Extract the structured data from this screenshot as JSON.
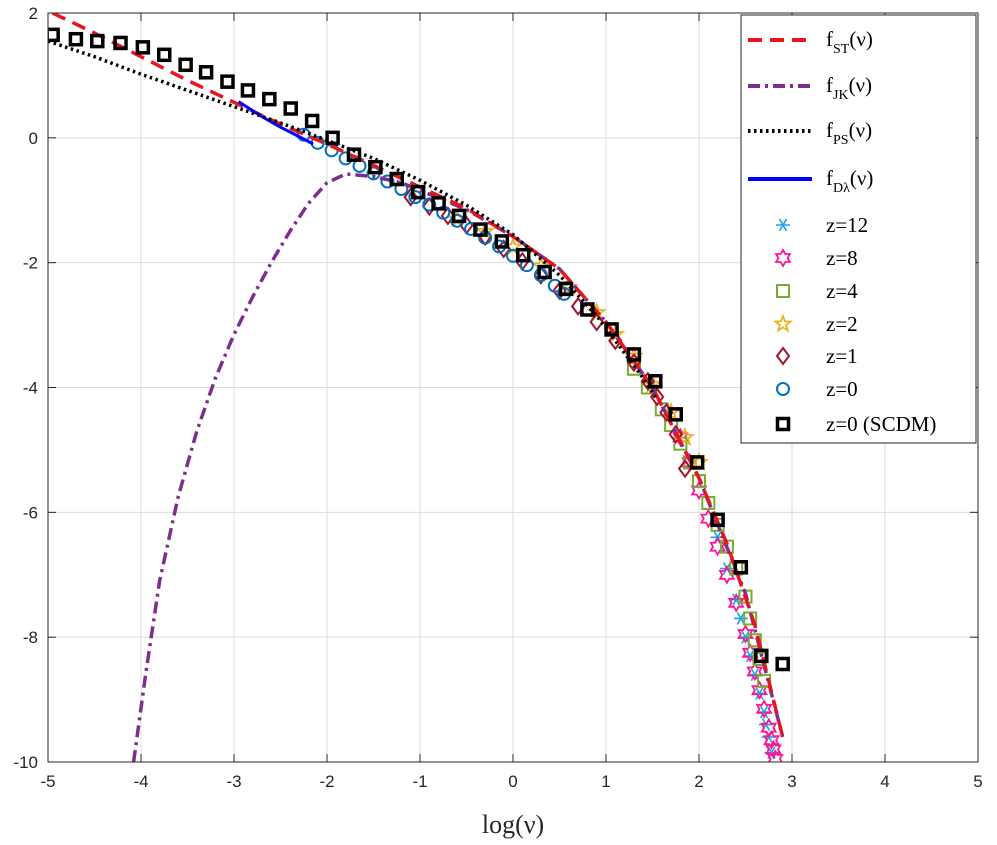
{
  "chart_data": {
    "type": "line",
    "title": "",
    "xlabel": "log(ν)",
    "ylabel": "",
    "xlim": [
      -5,
      5
    ],
    "ylim": [
      -10,
      2
    ],
    "xticks": [
      -5,
      -4,
      -3,
      -2,
      -1,
      0,
      1,
      2,
      3,
      4,
      5
    ],
    "yticks": [
      2,
      0,
      -2,
      -4,
      -6,
      -8,
      -10
    ],
    "grid": true,
    "legend_position": "top-right",
    "series": [
      {
        "name": "f_ST(ν)",
        "label_main": "f",
        "label_sub": "ST",
        "label_tail": "(ν)",
        "kind": "line",
        "style": "dashed",
        "color": "#e8141e",
        "x": [
          -4.95,
          -4.5,
          -4.0,
          -3.5,
          -3.0,
          -2.5,
          -2.0,
          -1.5,
          -1.0,
          -0.5,
          0.0,
          0.5,
          1.0,
          1.5,
          2.0,
          2.3,
          2.6,
          2.9
        ],
        "y": [
          2.0,
          1.68,
          1.3,
          0.92,
          0.57,
          0.22,
          -0.1,
          -0.44,
          -0.79,
          -1.13,
          -1.58,
          -2.1,
          -2.95,
          -4.0,
          -5.45,
          -6.5,
          -7.8,
          -9.6
        ]
      },
      {
        "name": "f_JK(ν)",
        "label_main": "f",
        "label_sub": "JK",
        "label_tail": "(ν)",
        "kind": "line",
        "style": "dashdot",
        "color": "#7e2f8e",
        "x": [
          -4.08,
          -3.95,
          -3.8,
          -3.6,
          -3.4,
          -3.2,
          -3.0,
          -2.8,
          -2.6,
          -2.4,
          -2.2,
          -2.0,
          -1.8,
          -1.5,
          -1.2,
          -1.0,
          -0.5,
          0.0,
          0.5,
          1.0,
          1.5,
          2.0,
          2.5,
          2.9
        ],
        "y": [
          -10.0,
          -8.6,
          -7.1,
          -5.75,
          -4.7,
          -3.85,
          -3.15,
          -2.55,
          -2.0,
          -1.5,
          -1.05,
          -0.72,
          -0.58,
          -0.62,
          -0.72,
          -0.84,
          -1.15,
          -1.58,
          -2.1,
          -2.95,
          -4.0,
          -5.45,
          -7.3,
          -9.6
        ]
      },
      {
        "name": "f_PS(ν)",
        "label_main": "f",
        "label_sub": "PS",
        "label_tail": "(ν)",
        "kind": "line",
        "style": "dotted",
        "color": "#000000",
        "x": [
          -5.0,
          -4.5,
          -4.0,
          -3.5,
          -3.0,
          -2.5,
          -2.0,
          -1.5,
          -1.0,
          -0.5,
          0.0,
          0.5,
          0.9,
          1.2,
          1.4,
          1.55
        ],
        "y": [
          1.55,
          1.3,
          1.02,
          0.76,
          0.5,
          0.24,
          -0.04,
          -0.33,
          -0.68,
          -1.08,
          -1.55,
          -2.2,
          -2.85,
          -3.45,
          -3.85,
          -4.2
        ]
      },
      {
        "name": "f_Dλ(ν)",
        "label_main": "f",
        "label_sub": "Dλ",
        "label_tail": "(ν)",
        "kind": "line",
        "style": "solid",
        "color": "#0000ff",
        "x": [
          -2.95,
          -2.7,
          -2.5,
          -2.3,
          -2.15
        ],
        "y": [
          0.58,
          0.34,
          0.17,
          0.02,
          -0.1
        ]
      },
      {
        "name": "z=12",
        "kind": "scatter",
        "marker": "asterisk",
        "color": "#1aa3e8",
        "x": [
          2.2,
          2.3,
          2.4,
          2.45,
          2.5,
          2.55,
          2.6,
          2.65,
          2.7,
          2.72,
          2.75,
          2.78
        ],
        "y": [
          -6.4,
          -6.9,
          -7.4,
          -7.7,
          -8.0,
          -8.3,
          -8.6,
          -8.9,
          -9.2,
          -9.4,
          -9.6,
          -9.85
        ]
      },
      {
        "name": "z=8",
        "kind": "scatter",
        "marker": "hexagram",
        "color": "#ff1493",
        "x": [
          1.8,
          1.9,
          2.0,
          2.1,
          2.2,
          2.3,
          2.4,
          2.5,
          2.55,
          2.6,
          2.65,
          2.7,
          2.75,
          2.78,
          2.8,
          2.82
        ],
        "y": [
          -4.8,
          -5.2,
          -5.65,
          -6.1,
          -6.55,
          -7.0,
          -7.45,
          -7.95,
          -8.25,
          -8.55,
          -8.85,
          -9.15,
          -9.45,
          -9.65,
          -9.8,
          -9.95
        ]
      },
      {
        "name": "z=4",
        "kind": "scatter",
        "marker": "square",
        "color": "#77ac30",
        "x": [
          1.3,
          1.45,
          1.6,
          1.7,
          1.8,
          1.9,
          2.0,
          2.1,
          2.2,
          2.3,
          2.4,
          2.5,
          2.55,
          2.6,
          2.65,
          2.7
        ],
        "y": [
          -3.7,
          -4.0,
          -4.35,
          -4.6,
          -4.9,
          -5.2,
          -5.5,
          -5.85,
          -6.2,
          -6.55,
          -6.9,
          -7.35,
          -7.7,
          -8.05,
          -8.35,
          -8.7
        ]
      },
      {
        "name": "z=2",
        "kind": "scatter",
        "marker": "pentagram",
        "color": "#edb120",
        "x": [
          -0.6,
          -0.3,
          0.0,
          0.3,
          0.6,
          0.9,
          1.1,
          1.3,
          1.5,
          1.7,
          1.85,
          2.0
        ],
        "y": [
          -1.3,
          -1.5,
          -1.75,
          -2.05,
          -2.4,
          -2.8,
          -3.15,
          -3.5,
          -3.95,
          -4.4,
          -4.8,
          -5.2
        ]
      },
      {
        "name": "z=1",
        "kind": "scatter",
        "marker": "diamond",
        "color": "#a2142f",
        "x": [
          -1.1,
          -0.9,
          -0.7,
          -0.5,
          -0.3,
          -0.1,
          0.1,
          0.3,
          0.5,
          0.7,
          0.9,
          1.1,
          1.3,
          1.45,
          1.55,
          1.65,
          1.75,
          1.85
        ],
        "y": [
          -0.95,
          -1.1,
          -1.25,
          -1.4,
          -1.58,
          -1.78,
          -1.98,
          -2.2,
          -2.45,
          -2.7,
          -2.95,
          -3.25,
          -3.6,
          -3.9,
          -4.15,
          -4.4,
          -4.75,
          -5.3
        ]
      },
      {
        "name": "z=0",
        "kind": "scatter",
        "marker": "circle",
        "color": "#0072bd",
        "x": [
          -2.25,
          -2.1,
          -1.95,
          -1.8,
          -1.65,
          -1.5,
          -1.35,
          -1.2,
          -1.05,
          -0.9,
          -0.75,
          -0.6,
          -0.45,
          -0.3,
          -0.15,
          0.0,
          0.15,
          0.3,
          0.45,
          0.55
        ],
        "y": [
          0.05,
          -0.08,
          -0.2,
          -0.33,
          -0.45,
          -0.57,
          -0.7,
          -0.82,
          -0.95,
          -1.07,
          -1.2,
          -1.33,
          -1.46,
          -1.6,
          -1.74,
          -1.89,
          -2.04,
          -2.2,
          -2.37,
          -2.5
        ]
      },
      {
        "name": "z=0 (SCDM)",
        "kind": "scatter",
        "marker": "square-bold",
        "color": "#000000",
        "x": [
          -4.95,
          -4.7,
          -4.47,
          -4.22,
          -3.98,
          -3.75,
          -3.52,
          -3.3,
          -3.07,
          -2.85,
          -2.62,
          -2.39,
          -2.16,
          -1.94,
          -1.71,
          -1.48,
          -1.25,
          -1.02,
          -0.8,
          -0.58,
          -0.35,
          -0.12,
          0.11,
          0.34,
          0.57,
          0.8,
          1.06,
          1.3,
          1.53,
          1.75,
          1.98,
          2.2,
          2.45,
          2.67,
          2.9
        ],
        "y": [
          1.65,
          1.58,
          1.55,
          1.52,
          1.45,
          1.33,
          1.17,
          1.05,
          0.9,
          0.76,
          0.62,
          0.47,
          0.27,
          0.0,
          -0.27,
          -0.47,
          -0.66,
          -0.87,
          -1.05,
          -1.25,
          -1.47,
          -1.66,
          -1.88,
          -2.15,
          -2.42,
          -2.75,
          -3.07,
          -3.47,
          -3.9,
          -4.43,
          -5.2,
          -6.12,
          -6.88,
          -8.3,
          -8.43
        ]
      }
    ]
  }
}
